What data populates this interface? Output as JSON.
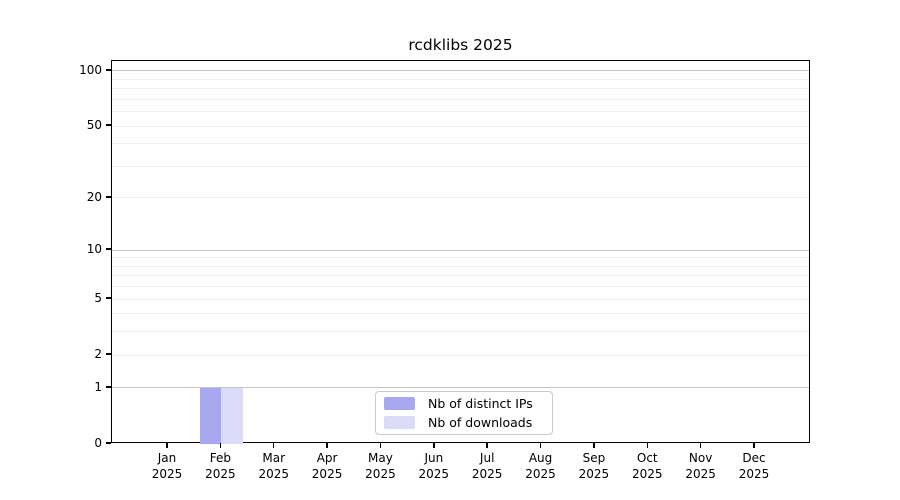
{
  "chart_data": {
    "type": "bar",
    "title": "rcdklibs 2025",
    "categories": [
      "Jan",
      "Feb",
      "Mar",
      "Apr",
      "May",
      "Jun",
      "Jul",
      "Aug",
      "Sep",
      "Oct",
      "Nov",
      "Dec"
    ],
    "category_year_line": "2025",
    "series": [
      {
        "name": "Nb of distinct IPs",
        "color": "#a8a8f0",
        "values": [
          0,
          1,
          0,
          0,
          0,
          0,
          0,
          0,
          0,
          0,
          0,
          0
        ]
      },
      {
        "name": "Nb of downloads",
        "color": "#dbdbf8",
        "values": [
          0,
          1,
          0,
          0,
          0,
          0,
          0,
          0,
          0,
          0,
          0,
          0
        ]
      }
    ],
    "xlabel": "",
    "ylabel": "",
    "yscale": "log1p",
    "ylim": [
      0,
      113.3
    ],
    "y_ticks": [
      0,
      1,
      2,
      5,
      10,
      20,
      50,
      100
    ],
    "grid": {
      "on": true,
      "major_values": [
        1,
        10,
        100
      ],
      "minor_values": [
        2,
        3,
        4,
        5,
        6,
        7,
        8,
        9,
        20,
        30,
        40,
        50,
        60,
        70,
        80,
        90
      ],
      "major_color": "#c6c6c6",
      "minor_color": "#f0f0f0"
    },
    "legend_position": "lower center inside",
    "colors": {
      "spine": "#000000",
      "text": "#000000",
      "legend_border": "#cccccc",
      "background": "#ffffff"
    }
  }
}
